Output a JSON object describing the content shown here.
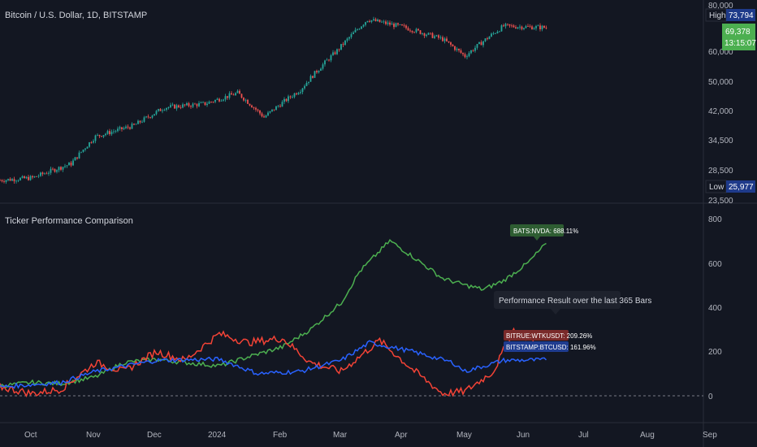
{
  "main_pane": {
    "symbol_title": "Bitcoin / U.S. Dollar, 1D, BITSTAMP",
    "high_label": "High",
    "high_value": "73,794",
    "low_label": "Low",
    "low_value": "25,977",
    "last_price": "69,378",
    "countdown": "13:15:07",
    "y_ticks": [
      "80,000",
      "60,000",
      "50,000",
      "42,000",
      "34,500",
      "28,500",
      "23,500"
    ]
  },
  "indicator_pane": {
    "title": "Ticker Performance Comparison",
    "y_ticks": [
      "800",
      "600",
      "400",
      "200",
      "0"
    ],
    "tooltip": "Performance Result over the last 365 Bars"
  },
  "x_axis": {
    "labels": [
      "Oct",
      "Nov",
      "Dec",
      "2024",
      "Feb",
      "Mar",
      "Apr",
      "May",
      "Jun",
      "Jul",
      "Aug",
      "Sep"
    ]
  },
  "chart_data": [
    {
      "type": "candlestick",
      "title": "Bitcoin / U.S. Dollar, 1D, BITSTAMP",
      "yscale": "log",
      "ylim": [
        23500,
        80000
      ],
      "x_labels": [
        "Oct",
        "Nov",
        "Dec",
        "2024",
        "Feb",
        "Mar",
        "Apr",
        "May",
        "Jun"
      ],
      "close_by_date": [
        {
          "date": "2023-09-15",
          "close": 26600
        },
        {
          "date": "2023-10-01",
          "close": 27000
        },
        {
          "date": "2023-10-20",
          "close": 29500
        },
        {
          "date": "2023-11-01",
          "close": 35000
        },
        {
          "date": "2023-11-20",
          "close": 37500
        },
        {
          "date": "2023-12-05",
          "close": 42000
        },
        {
          "date": "2023-12-25",
          "close": 43000
        },
        {
          "date": "2024-01-10",
          "close": 46000
        },
        {
          "date": "2024-01-23",
          "close": 39500
        },
        {
          "date": "2024-02-10",
          "close": 47000
        },
        {
          "date": "2024-02-28",
          "close": 60000
        },
        {
          "date": "2024-03-14",
          "close": 73000
        },
        {
          "date": "2024-04-01",
          "close": 69500
        },
        {
          "date": "2024-04-20",
          "close": 64500
        },
        {
          "date": "2024-05-01",
          "close": 58000
        },
        {
          "date": "2024-05-20",
          "close": 70000
        },
        {
          "date": "2024-06-10",
          "close": 69378
        }
      ],
      "high": 73794,
      "low": 25977,
      "last": 69378,
      "colors": {
        "up": "#26a69a",
        "down": "#ef5350"
      }
    },
    {
      "type": "line",
      "title": "Ticker Performance Comparison",
      "yunit": "%",
      "ylim": [
        -50,
        800
      ],
      "x_labels": [
        "Oct",
        "Nov",
        "Dec",
        "2024",
        "Feb",
        "Mar",
        "Apr",
        "May",
        "Jun",
        "Jul",
        "Aug",
        "Sep"
      ],
      "series": [
        {
          "name": "BATS:NVDA",
          "color": "#4caf50",
          "final_label": "BATS:NVDA: 688.11%",
          "points": [
            {
              "date": "2023-09-15",
              "value": 45
            },
            {
              "date": "2023-10-01",
              "value": 60
            },
            {
              "date": "2023-10-15",
              "value": 55
            },
            {
              "date": "2023-11-01",
              "value": 85
            },
            {
              "date": "2023-11-15",
              "value": 150
            },
            {
              "date": "2023-12-01",
              "value": 165
            },
            {
              "date": "2023-12-15",
              "value": 150
            },
            {
              "date": "2024-01-01",
              "value": 135
            },
            {
              "date": "2024-01-15",
              "value": 175
            },
            {
              "date": "2024-02-01",
              "value": 220
            },
            {
              "date": "2024-02-15",
              "value": 300
            },
            {
              "date": "2024-03-01",
              "value": 420
            },
            {
              "date": "2024-03-10",
              "value": 560
            },
            {
              "date": "2024-03-25",
              "value": 700
            },
            {
              "date": "2024-04-05",
              "value": 630
            },
            {
              "date": "2024-04-20",
              "value": 530
            },
            {
              "date": "2024-05-01",
              "value": 500
            },
            {
              "date": "2024-05-10",
              "value": 480
            },
            {
              "date": "2024-05-20",
              "value": 520
            },
            {
              "date": "2024-06-01",
              "value": 600
            },
            {
              "date": "2024-06-10",
              "value": 688.11
            }
          ]
        },
        {
          "name": "BITRUE:WTKUSDT",
          "color": "#f44336",
          "final_label": "BITRUE:WTKUSDT: 209.26%",
          "points": [
            {
              "date": "2023-09-15",
              "value": 40
            },
            {
              "date": "2023-10-01",
              "value": 10
            },
            {
              "date": "2023-10-15",
              "value": 30
            },
            {
              "date": "2023-11-01",
              "value": 150
            },
            {
              "date": "2023-11-15",
              "value": 110
            },
            {
              "date": "2023-12-01",
              "value": 200
            },
            {
              "date": "2023-12-15",
              "value": 160
            },
            {
              "date": "2024-01-01",
              "value": 280
            },
            {
              "date": "2024-01-15",
              "value": 240
            },
            {
              "date": "2024-02-01",
              "value": 260
            },
            {
              "date": "2024-02-15",
              "value": 150
            },
            {
              "date": "2024-03-01",
              "value": 110
            },
            {
              "date": "2024-03-20",
              "value": 250
            },
            {
              "date": "2024-04-05",
              "value": 120
            },
            {
              "date": "2024-04-20",
              "value": 10
            },
            {
              "date": "2024-05-01",
              "value": 20
            },
            {
              "date": "2024-05-15",
              "value": 110
            },
            {
              "date": "2024-05-25",
              "value": 300
            },
            {
              "date": "2024-06-10",
              "value": 209.26
            }
          ]
        },
        {
          "name": "BITSTAMP:BTCUSD",
          "color": "#2962ff",
          "final_label": "BITSTAMP:BTCUSD: 161.96%",
          "points": [
            {
              "date": "2023-09-15",
              "value": 40
            },
            {
              "date": "2023-10-15",
              "value": 60
            },
            {
              "date": "2023-11-01",
              "value": 110
            },
            {
              "date": "2023-12-01",
              "value": 160
            },
            {
              "date": "2024-01-01",
              "value": 165
            },
            {
              "date": "2024-01-20",
              "value": 100
            },
            {
              "date": "2024-02-10",
              "value": 110
            },
            {
              "date": "2024-03-01",
              "value": 160
            },
            {
              "date": "2024-03-15",
              "value": 240
            },
            {
              "date": "2024-04-05",
              "value": 200
            },
            {
              "date": "2024-04-25",
              "value": 150
            },
            {
              "date": "2024-05-01",
              "value": 110
            },
            {
              "date": "2024-05-20",
              "value": 160
            },
            {
              "date": "2024-06-10",
              "value": 161.96
            }
          ]
        }
      ]
    }
  ]
}
